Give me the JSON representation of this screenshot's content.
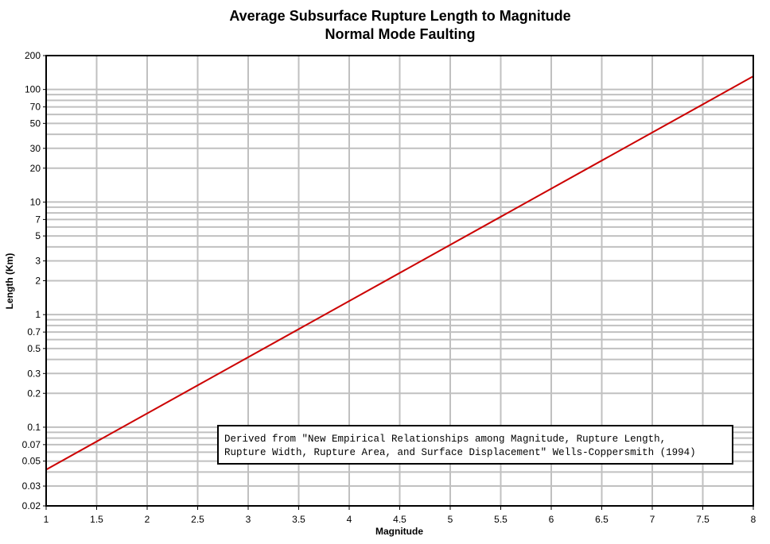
{
  "chart_data": {
    "type": "line",
    "title": [
      "Average Subsurface Rupture Length to Magnitude",
      "Normal Mode Faulting"
    ],
    "xlabel": "Magnitude",
    "ylabel": "Length (Km)",
    "xlim": [
      1,
      8
    ],
    "ylim": [
      0.02,
      200
    ],
    "yscale": "log",
    "grid": true,
    "x_ticks": [
      1,
      1.5,
      2,
      2.5,
      3,
      3.5,
      4,
      4.5,
      5,
      5.5,
      6,
      6.5,
      7,
      7.5,
      8
    ],
    "x_tick_labels": [
      "1",
      "1.5",
      "2",
      "2.5",
      "3",
      "3.5",
      "4",
      "4.5",
      "5",
      "5.5",
      "6",
      "6.5",
      "7",
      "7.5",
      "8"
    ],
    "y_ticks": [
      0.02,
      0.03,
      0.05,
      0.07,
      0.1,
      0.2,
      0.3,
      0.5,
      0.7,
      1,
      2,
      3,
      5,
      7,
      10,
      20,
      30,
      50,
      70,
      100,
      200
    ],
    "y_tick_labels": [
      "0.02",
      "0.03",
      "0.05",
      "0.07",
      "0.1",
      "0.2",
      "0.3",
      "0.5",
      "0.7",
      "1",
      "2",
      "3",
      "5",
      "7",
      "10",
      "20",
      "30",
      "50",
      "70",
      "100",
      "200"
    ],
    "y_minor_grid": [
      0.04,
      0.06,
      0.08,
      0.09,
      0.4,
      0.6,
      0.8,
      0.9,
      4,
      6,
      8,
      9,
      40,
      60,
      80,
      90
    ],
    "series": [
      {
        "color": "#cc0000",
        "x": [
          1,
          8
        ],
        "y": [
          0.042,
          131
        ]
      }
    ],
    "annotation": [
      "Derived from \"New Empirical Relationships among Magnitude, Rupture Length,",
      "Rupture Width, Rupture Area, and Surface Displacement\" Wells-Coppersmith (1994)"
    ],
    "colors": {
      "grid": "#c0c0c0",
      "axes": "#000000",
      "line": "#cc0000",
      "background": "#ffffff"
    }
  }
}
